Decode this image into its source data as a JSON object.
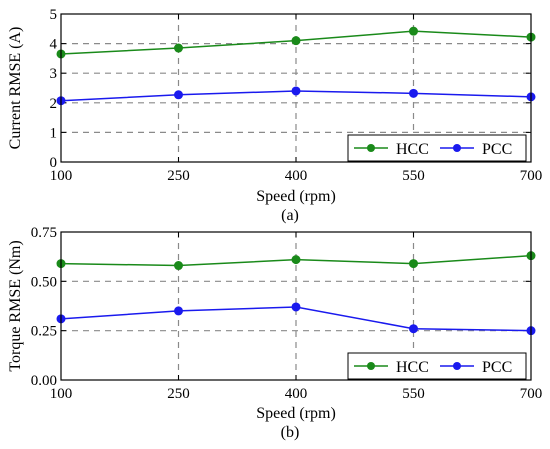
{
  "chart_data": [
    {
      "type": "line",
      "caption": "(a)",
      "x": [
        100,
        250,
        400,
        550,
        700
      ],
      "xlim": [
        100,
        700
      ],
      "ylim": [
        0,
        5
      ],
      "xticks": [
        "100",
        "250",
        "400",
        "550",
        "700"
      ],
      "yticks": [
        "0",
        "1",
        "2",
        "3",
        "4",
        "5"
      ],
      "xlabel": "Speed (rpm)",
      "ylabel": "Current RMSE (A)",
      "grid": true,
      "legend_position": "bottom-right",
      "series": [
        {
          "name": "HCC",
          "color": "#1a8a1a",
          "values": [
            3.65,
            3.85,
            4.1,
            4.42,
            4.22
          ]
        },
        {
          "name": "PCC",
          "color": "#1a1aee",
          "values": [
            2.07,
            2.27,
            2.4,
            2.32,
            2.2
          ]
        }
      ]
    },
    {
      "type": "line",
      "caption": "(b)",
      "x": [
        100,
        250,
        400,
        550,
        700
      ],
      "xlim": [
        100,
        700
      ],
      "ylim": [
        0,
        0.75
      ],
      "xticks": [
        "100",
        "250",
        "400",
        "550",
        "700"
      ],
      "yticks": [
        "0.00",
        "0.25",
        "0.50",
        "0.75"
      ],
      "xlabel": "Speed (rpm)",
      "ylabel": "Torque RMSE (Nm)",
      "grid": true,
      "legend_position": "bottom-right",
      "series": [
        {
          "name": "HCC",
          "color": "#1a8a1a",
          "values": [
            0.59,
            0.58,
            0.61,
            0.59,
            0.63
          ]
        },
        {
          "name": "PCC",
          "color": "#1a1aee",
          "values": [
            0.31,
            0.35,
            0.37,
            0.26,
            0.25
          ]
        }
      ]
    }
  ]
}
